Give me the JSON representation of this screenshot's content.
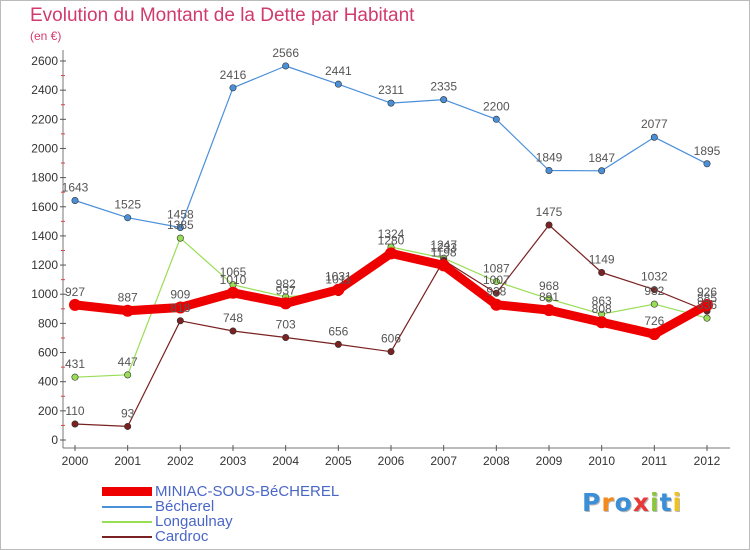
{
  "header": {
    "title": "Evolution du Montant de la Dette par Habitant",
    "subtitle": "(en €)"
  },
  "logo": {
    "text": "Proxiti",
    "letter_colors": [
      "#3a8fd8",
      "#f28a1c",
      "#3a8fd8",
      "#e63a3a",
      "#8cc63e",
      "#3a8fd8",
      "#f2c21c"
    ]
  },
  "chart_data": {
    "type": "line",
    "title": "Evolution du Montant de la Dette par Habitant",
    "subtitle": "(en €)",
    "xlabel": "",
    "ylabel": "",
    "ylim": [
      0,
      2600
    ],
    "y_ticks": [
      0,
      200,
      400,
      600,
      800,
      1000,
      1200,
      1400,
      1600,
      1800,
      2000,
      2200,
      2400,
      2600
    ],
    "x": [
      "2000",
      "2001",
      "2002",
      "2003",
      "2004",
      "2005",
      "2006",
      "2007",
      "2008",
      "2009",
      "2010",
      "2011",
      "2012"
    ],
    "grid": false,
    "legend": "bottom-left",
    "series": [
      {
        "name": "MINIAC-SOUS-BéCHEREL",
        "color": "#ee0000",
        "values": [
          927,
          887,
          909,
          1010,
          937,
          1031,
          1280,
          1198,
          928,
          891,
          808,
          726,
          926
        ]
      },
      {
        "name": "Bécherel",
        "color": "#4a90d9",
        "values": [
          1643,
          1525,
          1458,
          2416,
          2566,
          2441,
          2311,
          2335,
          2200,
          1849,
          1847,
          2077,
          1895
        ]
      },
      {
        "name": "Longaulnay",
        "color": "#99dd55",
        "values": [
          431,
          447,
          1385,
          1065,
          982,
          1011,
          1324,
          1247,
          1087,
          968,
          863,
          932,
          836
        ]
      },
      {
        "name": "Cardroc",
        "color": "#7a2121",
        "values": [
          110,
          93,
          818,
          748,
          703,
          656,
          606,
          1233,
          1007,
          1475,
          1149,
          1032,
          885
        ]
      }
    ]
  }
}
